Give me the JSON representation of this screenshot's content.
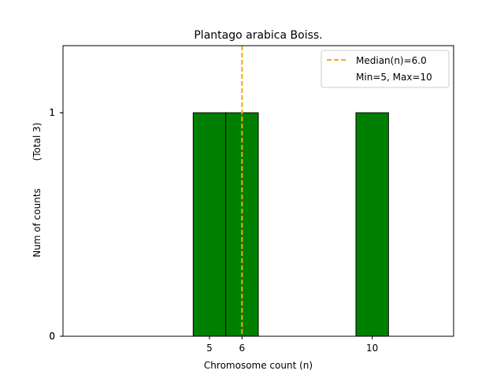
{
  "chart_data": {
    "type": "bar",
    "title": "Plantago arabica Boiss.",
    "xlabel": "Chromosome count (n)",
    "ylabel": "Num of counts",
    "ylabel_total": "(Total 3)",
    "xlim": [
      0.5,
      12.5
    ],
    "ylim": [
      0,
      1.3
    ],
    "xticks": [
      5,
      6,
      10
    ],
    "yticks": [
      0,
      1
    ],
    "bins": [
      {
        "x0": 4.5,
        "x1": 5.5,
        "count": 1
      },
      {
        "x0": 5.5,
        "x1": 6.5,
        "count": 1
      },
      {
        "x0": 9.5,
        "x1": 10.5,
        "count": 1
      }
    ],
    "median": 6.0,
    "min": 5,
    "max": 10,
    "bar_color": "#008000",
    "median_color": "#FFA500",
    "legend": {
      "placement": "top-right",
      "entries": [
        "Median(n)=6.0",
        "Min=5, Max=10"
      ]
    }
  }
}
